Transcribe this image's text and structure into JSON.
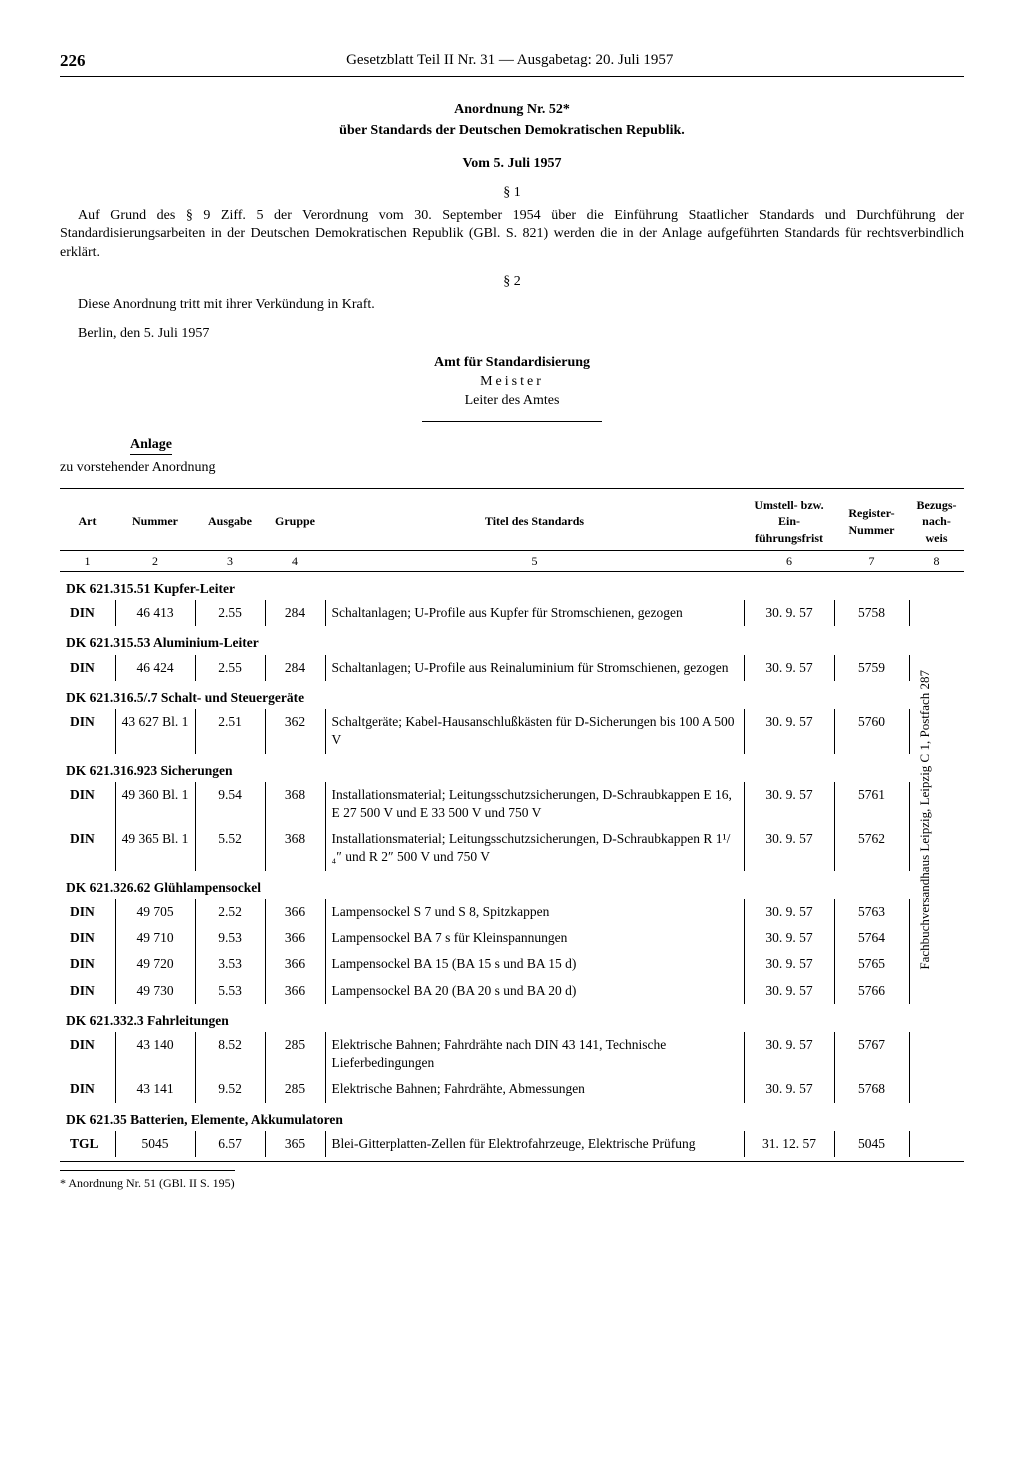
{
  "page_number": "226",
  "header_title": "Gesetzblatt Teil II Nr. 31 — Ausgabetag: 20. Juli 1957",
  "title": "Anordnung Nr. 52*",
  "subtitle": "über Standards der Deutschen Demokratischen Republik.",
  "date_line": "Vom 5. Juli 1957",
  "section1_label": "§ 1",
  "para1": "Auf Grund des § 9 Ziff. 5 der Verordnung vom 30. September 1954 über die Einführung Staatlicher Standards und Durchführung der Standardisierungsarbeiten in der Deutschen Demokratischen Republik (GBl. S. 821) werden die in der Anlage aufgeführten Standards für rechtsverbindlich erklärt.",
  "section2_label": "§ 2",
  "para2": "Diese Anordnung tritt mit ihrer Verkündung in Kraft.",
  "para3": "Berlin, den 5. Juli 1957",
  "sig_authority": "Amt für Standardisierung",
  "sig_name": "Meister",
  "sig_role": "Leiter des Amtes",
  "anlage_heading": "Anlage",
  "anlage_sub": "zu vorstehender Anordnung",
  "side_note": "Fachbuchversandhaus Leipzig, Leipzig C 1, Postfach 287",
  "columns": {
    "c1": "Art",
    "c2": "Nummer",
    "c3": "Ausgabe",
    "c4": "Gruppe",
    "c5": "Titel des Standards",
    "c6": "Umstell- bzw. Ein­führungsfrist",
    "c7": "Register-Nummer",
    "c8": "Bezugs-nach-weis",
    "n1": "1",
    "n2": "2",
    "n3": "3",
    "n4": "4",
    "n5": "5",
    "n6": "6",
    "n7": "7",
    "n8": "8"
  },
  "sections": [
    {
      "header": "DK 621.315.51 Kupfer-Leiter",
      "rows": [
        {
          "art": "DIN",
          "num": "46 413",
          "ausg": "2.55",
          "grp": "284",
          "titel": "Schaltanlagen; U-Profile aus Kupfer für Stromschienen, gezogen",
          "frist": "30. 9. 57",
          "reg": "5758"
        }
      ]
    },
    {
      "header": "DK 621.315.53 Aluminium-Leiter",
      "rows": [
        {
          "art": "DIN",
          "num": "46 424",
          "ausg": "2.55",
          "grp": "284",
          "titel": "Schaltanlagen; U-Profile aus Reinaluminium für Strom­schienen, gezogen",
          "frist": "30. 9. 57",
          "reg": "5759"
        }
      ]
    },
    {
      "header": "DK 621.316.5/.7 Schalt- und Steuergeräte",
      "rows": [
        {
          "art": "DIN",
          "num": "43 627 Bl. 1",
          "ausg": "2.51",
          "grp": "362",
          "titel": "Schaltgeräte; Kabel-Haus­anschlußkästen für D-Sicherun­gen bis 100 A 500 V",
          "frist": "30. 9. 57",
          "reg": "5760"
        }
      ]
    },
    {
      "header": "DK 621.316.923 Sicherungen",
      "rows": [
        {
          "art": "DIN",
          "num": "49 360 Bl. 1",
          "ausg": "9.54",
          "grp": "368",
          "titel": "Installationsmaterial; Leitungs­schutzsicherungen, D-Schraub­kappen E 16, E 27 500 V und E 33 500 V und 750 V",
          "frist": "30. 9. 57",
          "reg": "5761"
        },
        {
          "art": "DIN",
          "num": "49 365 Bl. 1",
          "ausg": "5.52",
          "grp": "368",
          "titel": "Installationsmaterial; Leitungs­schutzsicherungen, D-Schraub­kappen R 1¹/₄″ und R 2″ 500 V und 750 V",
          "frist": "30. 9. 57",
          "reg": "5762"
        }
      ]
    },
    {
      "header": "DK 621.326.62 Glühlampensockel",
      "rows": [
        {
          "art": "DIN",
          "num": "49 705",
          "ausg": "2.52",
          "grp": "366",
          "titel": "Lampensockel S 7 und S 8, Spitzkappen",
          "frist": "30. 9. 57",
          "reg": "5763"
        },
        {
          "art": "DIN",
          "num": "49 710",
          "ausg": "9.53",
          "grp": "366",
          "titel": "Lampensockel BA 7 s für Klein­spannungen",
          "frist": "30. 9. 57",
          "reg": "5764"
        },
        {
          "art": "DIN",
          "num": "49 720",
          "ausg": "3.53",
          "grp": "366",
          "titel": "Lampensockel BA 15 (BA 15 s und BA 15 d)",
          "frist": "30. 9. 57",
          "reg": "5765"
        },
        {
          "art": "DIN",
          "num": "49 730",
          "ausg": "5.53",
          "grp": "366",
          "titel": "Lampensockel BA 20 (BA 20 s und BA 20 d)",
          "frist": "30. 9. 57",
          "reg": "5766"
        }
      ]
    },
    {
      "header": "DK 621.332.3 Fahrleitungen",
      "rows": [
        {
          "art": "DIN",
          "num": "43 140",
          "ausg": "8.52",
          "grp": "285",
          "titel": "Elektrische Bahnen; Fahrdrähte nach DIN 43 141, Technische Lieferbedingungen",
          "frist": "30. 9. 57",
          "reg": "5767"
        },
        {
          "art": "DIN",
          "num": "43 141",
          "ausg": "9.52",
          "grp": "285",
          "titel": "Elektrische Bahnen; Fahrdrähte, Abmessungen",
          "frist": "30. 9. 57",
          "reg": "5768"
        }
      ]
    },
    {
      "header": "DK 621.35 Batterien, Elemente, Akkumulatoren",
      "rows": [
        {
          "art": "TGL",
          "num": "5045",
          "ausg": "6.57",
          "grp": "365",
          "titel": "Blei-Gitterplatten-Zellen für Elektrofahrzeuge, Elektrische Prüfung",
          "frist": "31. 12. 57",
          "reg": "5045"
        }
      ]
    }
  ],
  "footnote": "* Anordnung Nr. 51 (GBl. II S. 195)"
}
